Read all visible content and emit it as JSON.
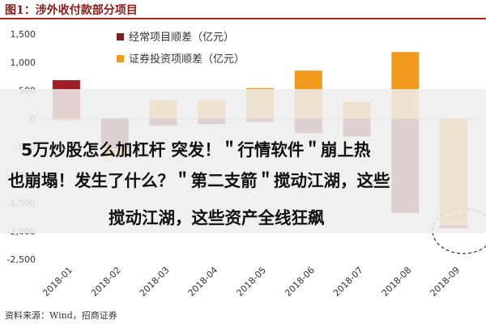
{
  "figure_title": "图1：涉外收付款部分项目",
  "source_note": "资料来源：Wind，招商证券",
  "overlay": {
    "line1": "5万炒股怎么加杠杆 突发！＂行情软件＂崩上热",
    "line2": "也崩塌！发生了什么？＂第二支箭＂搅动江湖，这些",
    "line3": "搅动江湖，这些资产全线狂飙"
  },
  "colors": {
    "series1": "#7b1f24",
    "series1_top": "#a01d25",
    "series2": "#f29a1e",
    "title": "#8b1a1a",
    "rule": "#b22222"
  },
  "chart_data": {
    "type": "bar",
    "categories": [
      "2018-01",
      "2018-02",
      "2018-03",
      "2018-04",
      "2018-05",
      "2018-06",
      "2018-07",
      "2018-08",
      "2018-09"
    ],
    "series": [
      {
        "name": "经常项目顺差（亿元）",
        "values": [
          680,
          -530,
          -130,
          -100,
          -60,
          -260,
          -320,
          -1680,
          -1950
        ]
      },
      {
        "name": "证券投资项顺差（亿元）",
        "values": [
          -30,
          -680,
          320,
          330,
          540,
          850,
          290,
          1180,
          -1900
        ]
      }
    ],
    "ylim": [
      -2500,
      1500
    ],
    "yticks": [
      "1,500",
      "1,000",
      "500",
      "0",
      "-500",
      "-1,000",
      "-1,500",
      "-2,000",
      "-2,500"
    ],
    "ytick_values": [
      1500,
      1000,
      500,
      0,
      -500,
      -1000,
      -1500,
      -2000,
      -2500
    ],
    "legend_position": "top-center",
    "highlight_category": "2018-09"
  }
}
